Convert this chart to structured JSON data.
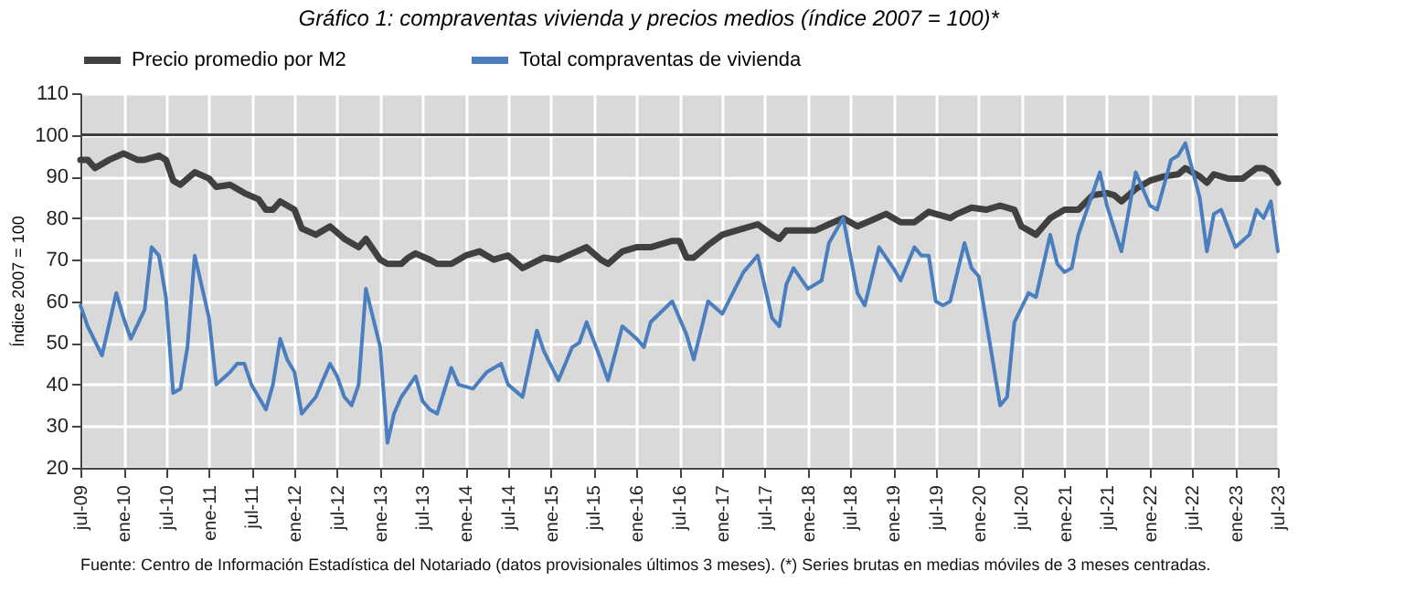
{
  "chart_data": {
    "type": "line",
    "title": "Gráfico 1: compraventas vivienda y precios medios (índice 2007 = 100)*",
    "ylabel": "Índice 2007 = 100",
    "annotations": [
      "Fuente: Centro de Información Estadística del Notariado (datos provisionales últimos 3 meses). (*) Series brutas en medias móviles de 3 meses centradas."
    ],
    "series": [
      {
        "name": "Precio promedio por M2",
        "color": "#404040",
        "x": [
          "2009-07",
          "2009-08",
          "2009-09",
          "2009-11",
          "2010-01",
          "2010-03",
          "2010-04",
          "2010-06",
          "2010-07",
          "2010-08",
          "2010-09",
          "2010-11",
          "2011-01",
          "2011-02",
          "2011-04",
          "2011-06",
          "2011-08",
          "2011-09",
          "2011-10",
          "2011-11",
          "2012-01",
          "2012-02",
          "2012-04",
          "2012-06",
          "2012-08",
          "2012-10",
          "2012-11",
          "2013-01",
          "2013-02",
          "2013-04",
          "2013-05",
          "2013-06",
          "2013-08",
          "2013-09",
          "2013-11",
          "2014-01",
          "2014-03",
          "2014-05",
          "2014-07",
          "2014-09",
          "2014-12",
          "2015-02",
          "2015-04",
          "2015-06",
          "2015-08",
          "2015-09",
          "2015-11",
          "2016-01",
          "2016-03",
          "2016-06",
          "2016-07",
          "2016-08",
          "2016-09",
          "2016-11",
          "2017-01",
          "2017-03",
          "2017-06",
          "2017-08",
          "2017-09",
          "2017-10",
          "2018-02",
          "2018-04",
          "2018-06",
          "2018-08",
          "2018-10",
          "2018-12",
          "2019-02",
          "2019-04",
          "2019-06",
          "2019-07",
          "2019-09",
          "2019-10",
          "2019-12",
          "2020-02",
          "2020-04",
          "2020-06",
          "2020-07",
          "2020-09",
          "2020-11",
          "2021-01",
          "2021-03",
          "2021-05",
          "2021-07",
          "2021-08",
          "2021-09",
          "2021-11",
          "2022-01",
          "2022-03",
          "2022-05",
          "2022-06",
          "2022-08",
          "2022-09",
          "2022-10",
          "2022-12",
          "2023-02",
          "2023-04",
          "2023-05",
          "2023-06",
          "2023-07"
        ],
        "values": [
          94,
          94,
          92,
          94,
          95.5,
          94,
          94,
          95,
          94,
          89,
          88,
          91,
          89.5,
          87.5,
          88,
          86,
          84.5,
          82,
          82,
          84,
          82,
          77.5,
          76,
          78,
          75,
          73,
          75,
          70,
          69,
          69,
          70.5,
          71.5,
          70,
          69,
          69,
          71,
          72,
          70,
          71,
          68,
          70.5,
          70,
          71.5,
          73,
          70,
          69,
          72,
          73,
          73,
          74.5,
          74.5,
          70.5,
          70.5,
          73.5,
          76,
          77,
          78.5,
          76,
          75,
          77,
          77,
          78.5,
          80,
          78,
          79.5,
          81,
          79,
          79,
          81.5,
          81,
          80,
          81,
          82.5,
          82,
          83,
          82,
          78,
          76,
          80,
          82,
          82,
          85.5,
          86,
          85.5,
          84,
          87,
          89,
          90,
          90.5,
          92,
          90,
          88.5,
          90.5,
          89.5,
          89.5,
          92,
          92,
          91,
          88.5
        ]
      },
      {
        "name": "Total compraventas de vivienda",
        "color": "#4a7ebf",
        "x": [
          "2009-07",
          "2009-08",
          "2009-10",
          "2009-12",
          "2010-01",
          "2010-02",
          "2010-04",
          "2010-05",
          "2010-06",
          "2010-07",
          "2010-08",
          "2010-09",
          "2010-10",
          "2010-11",
          "2011-01",
          "2011-02",
          "2011-04",
          "2011-05",
          "2011-06",
          "2011-07",
          "2011-09",
          "2011-10",
          "2011-11",
          "2011-12",
          "2012-01",
          "2012-02",
          "2012-04",
          "2012-05",
          "2012-06",
          "2012-07",
          "2012-08",
          "2012-09",
          "2012-10",
          "2012-11",
          "2013-01",
          "2013-02",
          "2013-03",
          "2013-04",
          "2013-06",
          "2013-07",
          "2013-08",
          "2013-09",
          "2013-11",
          "2013-12",
          "2014-02",
          "2014-04",
          "2014-06",
          "2014-07",
          "2014-09",
          "2014-11",
          "2014-12",
          "2015-02",
          "2015-04",
          "2015-05",
          "2015-06",
          "2015-08",
          "2015-09",
          "2015-11",
          "2016-01",
          "2016-02",
          "2016-03",
          "2016-06",
          "2016-08",
          "2016-09",
          "2016-11",
          "2017-01",
          "2017-04",
          "2017-06",
          "2017-08",
          "2017-09",
          "2017-10",
          "2017-11",
          "2018-01",
          "2018-03",
          "2018-04",
          "2018-06",
          "2018-08",
          "2018-09",
          "2018-11",
          "2019-01",
          "2019-02",
          "2019-04",
          "2019-05",
          "2019-06",
          "2019-07",
          "2019-08",
          "2019-09",
          "2019-11",
          "2019-12",
          "2020-01",
          "2020-04",
          "2020-05",
          "2020-06",
          "2020-08",
          "2020-09",
          "2020-11",
          "2020-12",
          "2021-01",
          "2021-02",
          "2021-03",
          "2021-06",
          "2021-07",
          "2021-09",
          "2021-11",
          "2022-01",
          "2022-02",
          "2022-04",
          "2022-05",
          "2022-06",
          "2022-08",
          "2022-09",
          "2022-10",
          "2022-11",
          "2023-01",
          "2023-03",
          "2023-04",
          "2023-05",
          "2023-06",
          "2023-07"
        ],
        "values": [
          59,
          54,
          47,
          62,
          56,
          51,
          58,
          73,
          71,
          61,
          38,
          39,
          49,
          71,
          56,
          40,
          43,
          45,
          45,
          40,
          34,
          40,
          51,
          46,
          43,
          33,
          37,
          41,
          45,
          42,
          37,
          35,
          40,
          63,
          49,
          26,
          33,
          37,
          42,
          36,
          34,
          33,
          44,
          40,
          39,
          43,
          45,
          40,
          37,
          53,
          48,
          41,
          49,
          50,
          55,
          46,
          41,
          54,
          51,
          49,
          55,
          60,
          52,
          46,
          60,
          57,
          67,
          71,
          56,
          54,
          64,
          68,
          63,
          65,
          74,
          80,
          62,
          59,
          73,
          68,
          65,
          73,
          71,
          71,
          60,
          59,
          60,
          74,
          68,
          66,
          35,
          37,
          55,
          62,
          61,
          76,
          69,
          67,
          68,
          76,
          91,
          83,
          72,
          91,
          83,
          82,
          94,
          95,
          98,
          85,
          72,
          81,
          82,
          73,
          76,
          82,
          80,
          84,
          72
        ]
      }
    ],
    "xlim": [
      "2009-07",
      "2023-07"
    ],
    "xticks": [
      {
        "value": "2009-07",
        "label": "jul-09"
      },
      {
        "value": "2010-01",
        "label": "ene-10"
      },
      {
        "value": "2010-07",
        "label": "jul-10"
      },
      {
        "value": "2011-01",
        "label": "ene-11"
      },
      {
        "value": "2011-07",
        "label": "jul-11"
      },
      {
        "value": "2012-01",
        "label": "ene-12"
      },
      {
        "value": "2012-07",
        "label": "jul-12"
      },
      {
        "value": "2013-01",
        "label": "ene-13"
      },
      {
        "value": "2013-07",
        "label": "jul-13"
      },
      {
        "value": "2014-01",
        "label": "ene-14"
      },
      {
        "value": "2014-07",
        "label": "jul-14"
      },
      {
        "value": "2015-01",
        "label": "ene-15"
      },
      {
        "value": "2015-07",
        "label": "jul-15"
      },
      {
        "value": "2016-01",
        "label": "ene-16"
      },
      {
        "value": "2016-07",
        "label": "jul-16"
      },
      {
        "value": "2017-01",
        "label": "ene-17"
      },
      {
        "value": "2017-07",
        "label": "jul-17"
      },
      {
        "value": "2018-01",
        "label": "ene-18"
      },
      {
        "value": "2018-07",
        "label": "jul-18"
      },
      {
        "value": "2019-01",
        "label": "ene-19"
      },
      {
        "value": "2019-07",
        "label": "jul-19"
      },
      {
        "value": "2020-01",
        "label": "ene-20"
      },
      {
        "value": "2020-07",
        "label": "jul-20"
      },
      {
        "value": "2021-01",
        "label": "ene-21"
      },
      {
        "value": "2021-07",
        "label": "jul-21"
      },
      {
        "value": "2022-01",
        "label": "ene-22"
      },
      {
        "value": "2022-07",
        "label": "jul-22"
      },
      {
        "value": "2023-01",
        "label": "ene-23"
      },
      {
        "value": "2023-07",
        "label": "jul-23"
      }
    ],
    "ylim": [
      20,
      110
    ],
    "yticks": [
      20,
      30,
      40,
      50,
      60,
      70,
      80,
      90,
      100,
      110
    ],
    "ref_lines": [
      {
        "axis": "y",
        "value": 100,
        "color": "#404040"
      }
    ],
    "grid": true,
    "legend": "top"
  }
}
